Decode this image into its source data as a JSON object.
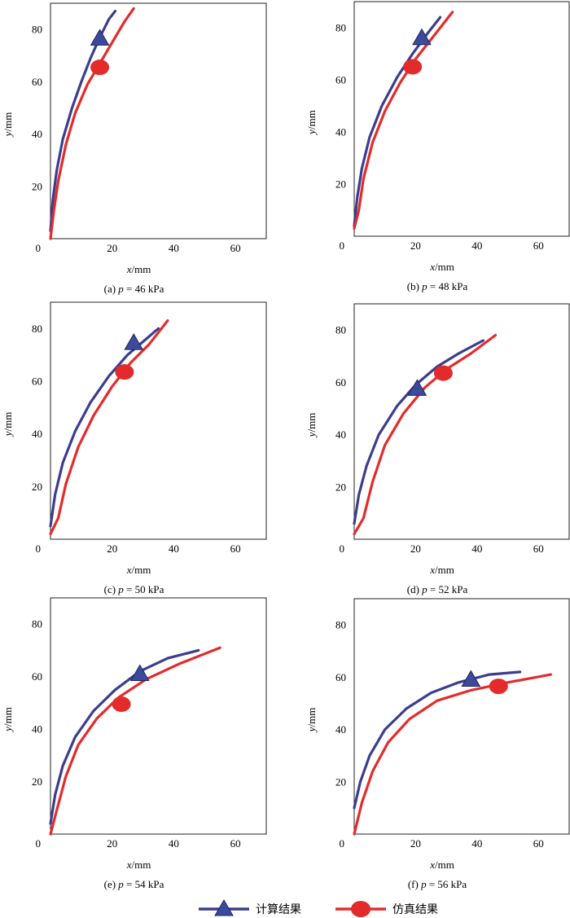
{
  "legend": {
    "calc_label": "计算结果",
    "sim_label": "仿真结果",
    "calc_color": "#3b3d8e",
    "sim_color": "#e32b2b"
  },
  "chart_data": [
    {
      "type": "line",
      "caption_prefix": "(a)",
      "caption_var": "p",
      "caption_value": "= 46 kPa",
      "xlabel_var": "x",
      "xlabel_unit": "/mm",
      "ylabel_var": "y",
      "ylabel_unit": "/mm",
      "xlim": [
        0,
        70
      ],
      "ylim": [
        0,
        90
      ],
      "xticks": [
        0,
        20,
        40,
        60
      ],
      "yticks": [
        20,
        40,
        60,
        80
      ],
      "series": [
        {
          "name": "计算结果",
          "x": [
            0,
            0.8,
            2,
            4,
            7,
            10,
            13,
            16,
            19,
            21
          ],
          "y": [
            3,
            15,
            26,
            38,
            50,
            60,
            69,
            77,
            84,
            87
          ]
        },
        {
          "name": "仿真结果",
          "x": [
            0,
            1,
            2.5,
            5,
            8,
            12,
            16,
            20,
            24,
            27
          ],
          "y": [
            0,
            10,
            22,
            36,
            48,
            59,
            67,
            75,
            83,
            88
          ]
        }
      ],
      "markers": {
        "triangle": [
          16,
          76.5
        ],
        "circle": [
          16,
          65.5
        ]
      }
    },
    {
      "type": "line",
      "caption_prefix": "(b)",
      "caption_var": "p",
      "caption_value": "= 48 kPa",
      "xlabel_var": "x",
      "xlabel_unit": "/mm",
      "ylabel_var": "y",
      "ylabel_unit": "/mm",
      "xlim": [
        0,
        70
      ],
      "ylim": [
        0,
        90
      ],
      "xticks": [
        0,
        20,
        40,
        60
      ],
      "yticks": [
        20,
        40,
        60,
        80
      ],
      "series": [
        {
          "name": "计算结果",
          "x": [
            0,
            1,
            2.5,
            5,
            9,
            14,
            19,
            24,
            28
          ],
          "y": [
            4,
            15,
            26,
            38,
            50,
            61,
            70,
            78,
            84
          ]
        },
        {
          "name": "仿真结果",
          "x": [
            0,
            1.5,
            3,
            6,
            10,
            15,
            20,
            26,
            32
          ],
          "y": [
            3,
            10,
            22,
            36,
            48,
            59,
            68,
            77,
            86
          ]
        }
      ],
      "markers": {
        "triangle": [
          22,
          76
        ],
        "circle": [
          19,
          65
        ]
      }
    },
    {
      "type": "line",
      "caption_prefix": "(c)",
      "caption_var": "p",
      "caption_value": "= 50 kPa",
      "xlabel_var": "x",
      "xlabel_unit": "/mm",
      "ylabel_var": "y",
      "ylabel_unit": "/mm",
      "xlim": [
        0,
        70
      ],
      "ylim": [
        0,
        90
      ],
      "xticks": [
        0,
        20,
        40,
        60
      ],
      "yticks": [
        20,
        40,
        60,
        80
      ],
      "series": [
        {
          "name": "计算结果",
          "x": [
            0,
            1.5,
            4,
            8,
            13,
            19,
            25,
            30,
            35
          ],
          "y": [
            5,
            17,
            29,
            41,
            52,
            62,
            70,
            75,
            80
          ]
        },
        {
          "name": "仿真结果",
          "x": [
            0,
            2.5,
            5,
            9,
            14,
            20,
            26,
            32,
            38
          ],
          "y": [
            2,
            8,
            21,
            35,
            47,
            58,
            67,
            74,
            83
          ]
        }
      ],
      "markers": {
        "triangle": [
          27,
          74.5
        ],
        "circle": [
          24,
          63.5
        ]
      }
    },
    {
      "type": "line",
      "caption_prefix": "(d)",
      "caption_var": "p",
      "caption_value": "= 52 kPa",
      "xlabel_var": "x",
      "xlabel_unit": "/mm",
      "ylabel_var": "y",
      "ylabel_unit": "/mm",
      "xlim": [
        0,
        70
      ],
      "ylim": [
        0,
        90
      ],
      "xticks": [
        0,
        20,
        40,
        60
      ],
      "yticks": [
        20,
        40,
        60,
        80
      ],
      "series": [
        {
          "name": "计算结果",
          "x": [
            0,
            1.5,
            4,
            8,
            14,
            20,
            27,
            34,
            42
          ],
          "y": [
            6,
            17,
            28,
            40,
            51,
            59,
            66,
            71,
            76
          ]
        },
        {
          "name": "仿真结果",
          "x": [
            0,
            3,
            6,
            10,
            16,
            23,
            30,
            38,
            46
          ],
          "y": [
            2,
            8,
            22,
            36,
            48,
            58,
            65,
            71,
            78
          ]
        }
      ],
      "markers": {
        "triangle": [
          20.5,
          57.5
        ],
        "circle": [
          29,
          63.5
        ]
      }
    },
    {
      "type": "line",
      "caption_prefix": "(e)",
      "caption_var": "p",
      "caption_value": "= 54 kPa",
      "xlabel_var": "x",
      "xlabel_unit": "/mm",
      "ylabel_var": "y",
      "ylabel_unit": "/mm",
      "xlim": [
        0,
        70
      ],
      "ylim": [
        0,
        90
      ],
      "xticks": [
        0,
        20,
        40,
        60
      ],
      "yticks": [
        20,
        40,
        60,
        80
      ],
      "series": [
        {
          "name": "计算结果",
          "x": [
            0,
            1.5,
            4,
            8,
            14,
            21,
            29,
            38,
            48
          ],
          "y": [
            4,
            15,
            26,
            37,
            47,
            55,
            62,
            67,
            70
          ]
        },
        {
          "name": "仿真结果",
          "x": [
            0,
            2,
            5,
            9,
            15,
            22,
            31,
            42,
            55
          ],
          "y": [
            0,
            9,
            22,
            34,
            44,
            52,
            59,
            65,
            71
          ]
        }
      ],
      "markers": {
        "triangle": [
          29,
          61
        ],
        "circle": [
          23,
          49.5
        ]
      }
    },
    {
      "type": "line",
      "caption_prefix": "(f)",
      "caption_var": "p",
      "caption_value": "= 56 kPa",
      "xlabel_var": "x",
      "xlabel_unit": "/mm",
      "ylabel_var": "y",
      "ylabel_unit": "/mm",
      "xlim": [
        0,
        70
      ],
      "ylim": [
        0,
        90
      ],
      "xticks": [
        0,
        20,
        40,
        60
      ],
      "yticks": [
        20,
        40,
        60,
        80
      ],
      "series": [
        {
          "name": "计算结果",
          "x": [
            0,
            2,
            5,
            10,
            17,
            25,
            34,
            44,
            54
          ],
          "y": [
            10,
            20,
            30,
            40,
            48,
            54,
            58,
            61,
            62
          ]
        },
        {
          "name": "仿真结果",
          "x": [
            0,
            2.5,
            6,
            11,
            18,
            27,
            38,
            50,
            64
          ],
          "y": [
            0,
            12,
            24,
            35,
            44,
            51,
            55,
            58,
            61
          ]
        }
      ],
      "markers": {
        "triangle": [
          38,
          59
        ],
        "circle": [
          47,
          56.5
        ]
      }
    }
  ]
}
